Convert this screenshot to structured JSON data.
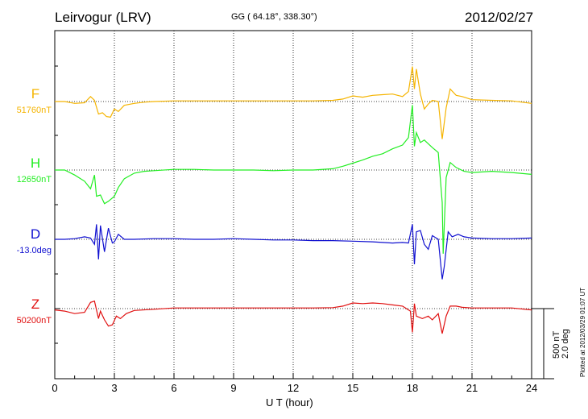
{
  "header": {
    "station": "Leirvogur (LRV)",
    "coords": "GG ( 64.18°, 338.30°)",
    "date": "2012/02/27"
  },
  "footer": {
    "plotted": "Plotted at 2012/03/29 01:07 UT"
  },
  "colors": {
    "F": "#f5b400",
    "H": "#22ee22",
    "D": "#1010d0",
    "Z": "#e01010"
  },
  "chart_data": {
    "type": "line",
    "xlabel": "U T (hour)",
    "xlim": [
      0,
      24
    ],
    "xticks": [
      "0",
      "3",
      "6",
      "9",
      "12",
      "15",
      "18",
      "21",
      "24"
    ],
    "scale": {
      "line1": "500 nT",
      "line2": "2.0 deg"
    },
    "series": [
      {
        "name": "F",
        "baseline_label": "51760nT",
        "x": [
          0,
          0.5,
          1.0,
          1.5,
          1.8,
          2.0,
          2.2,
          2.4,
          2.6,
          2.8,
          3.0,
          3.2,
          3.5,
          4.0,
          4.5,
          5.0,
          6,
          7,
          8,
          9,
          10,
          11,
          12,
          13,
          14,
          14.5,
          15,
          15.5,
          16,
          16.5,
          17,
          17.5,
          17.8,
          18.0,
          18.1,
          18.2,
          18.4,
          18.6,
          18.8,
          19.0,
          19.3,
          19.5,
          19.7,
          19.9,
          20.2,
          20.5,
          21,
          22,
          23,
          24
        ],
        "y": [
          0,
          0,
          -15,
          -10,
          40,
          10,
          -100,
          -90,
          -120,
          -125,
          -60,
          -80,
          -30,
          -15,
          -5,
          0,
          5,
          5,
          5,
          5,
          5,
          5,
          5,
          5,
          10,
          20,
          45,
          35,
          50,
          55,
          60,
          40,
          80,
          280,
          100,
          260,
          60,
          -60,
          -20,
          10,
          0,
          -300,
          -50,
          100,
          50,
          40,
          15,
          10,
          5,
          -15
        ]
      },
      {
        "name": "H",
        "baseline_label": "12650nT",
        "x": [
          0,
          0.5,
          1.0,
          1.5,
          1.8,
          2.0,
          2.1,
          2.3,
          2.5,
          2.7,
          3.0,
          3.2,
          3.5,
          4.0,
          4.5,
          5,
          6,
          7,
          8,
          9,
          10,
          11,
          12,
          13,
          14,
          14.5,
          15,
          15.5,
          16,
          16.5,
          17,
          17.5,
          17.8,
          18.0,
          18.1,
          18.2,
          18.4,
          18.6,
          18.8,
          19.0,
          19.3,
          19.5,
          19.55,
          19.7,
          19.9,
          20.2,
          20.6,
          21,
          22,
          23,
          24
        ],
        "y": [
          0,
          0,
          -40,
          -90,
          -150,
          -40,
          -210,
          -200,
          -270,
          -250,
          -210,
          -140,
          -70,
          -25,
          -10,
          -5,
          5,
          5,
          0,
          0,
          0,
          -5,
          0,
          0,
          10,
          30,
          55,
          80,
          110,
          130,
          170,
          200,
          260,
          520,
          190,
          300,
          220,
          240,
          210,
          180,
          140,
          -260,
          -670,
          -60,
          60,
          20,
          -10,
          -20,
          -10,
          -20,
          -35
        ]
      },
      {
        "name": "D",
        "baseline_label": "-13.0deg",
        "x": [
          0,
          0.5,
          1.0,
          1.5,
          1.8,
          2.0,
          2.1,
          2.2,
          2.3,
          2.5,
          2.7,
          2.9,
          3.0,
          3.2,
          3.5,
          4,
          5,
          6,
          7,
          8,
          9,
          10,
          11,
          12,
          13,
          14,
          15,
          16,
          17,
          17.5,
          17.8,
          18.0,
          18.1,
          18.2,
          18.4,
          18.6,
          18.8,
          19.0,
          19.3,
          19.5,
          19.6,
          19.8,
          20.0,
          20.3,
          20.6,
          21,
          22,
          23,
          24
        ],
        "y": [
          0,
          0,
          5,
          20,
          10,
          -40,
          120,
          -160,
          110,
          -100,
          90,
          -30,
          -20,
          40,
          0,
          0,
          5,
          5,
          0,
          0,
          5,
          0,
          -5,
          -5,
          -10,
          -10,
          -15,
          -20,
          -30,
          -25,
          -30,
          120,
          -200,
          60,
          70,
          -40,
          -80,
          30,
          0,
          -320,
          -220,
          60,
          20,
          40,
          20,
          10,
          5,
          5,
          10
        ]
      },
      {
        "name": "Z",
        "baseline_label": "50200nT",
        "x": [
          0,
          0.5,
          1.0,
          1.5,
          1.8,
          2.0,
          2.2,
          2.3,
          2.5,
          2.7,
          2.9,
          3.1,
          3.3,
          3.6,
          4,
          5,
          6,
          7,
          8,
          9,
          10,
          11,
          12,
          13,
          14,
          14.5,
          15,
          15.5,
          16,
          16.5,
          17,
          17.5,
          17.9,
          18.0,
          18.1,
          18.2,
          18.5,
          18.8,
          19.0,
          19.3,
          19.5,
          19.7,
          19.9,
          20.2,
          20.5,
          21,
          22,
          23,
          24
        ],
        "y": [
          -10,
          -20,
          -40,
          -30,
          50,
          60,
          -80,
          -20,
          -90,
          -140,
          -130,
          -60,
          -80,
          -40,
          -15,
          -5,
          5,
          5,
          5,
          5,
          5,
          5,
          5,
          5,
          8,
          20,
          45,
          40,
          45,
          40,
          30,
          20,
          -20,
          -190,
          40,
          -60,
          -80,
          -60,
          -90,
          -40,
          -200,
          -60,
          20,
          20,
          10,
          5,
          5,
          5,
          -10
        ]
      }
    ]
  }
}
